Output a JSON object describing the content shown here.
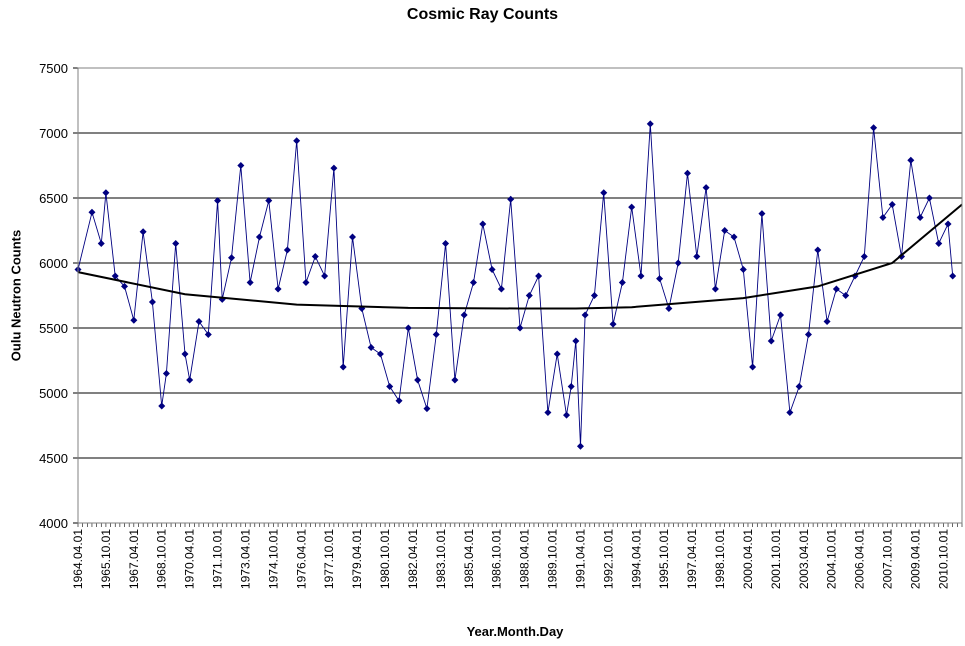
{
  "chart_data": {
    "type": "line",
    "title": "Cosmic Ray Counts",
    "xlabel": "Year.Month.Day",
    "ylabel": "Oulu Neutron Counts",
    "ylim": [
      4000,
      7500
    ],
    "y_ticks": [
      4000,
      4500,
      5000,
      5500,
      6000,
      6500,
      7000,
      7500
    ],
    "grid": "horizontal",
    "x_tick_labels": [
      "1964.04.01",
      "1965.10.01",
      "1967.04.01",
      "1968.10.01",
      "1970.04.01",
      "1971.10.01",
      "1973.04.01",
      "1974.10.01",
      "1976.04.01",
      "1977.10.01",
      "1979.04.01",
      "1980.10.01",
      "1982.04.01",
      "1983.10.01",
      "1985.04.01",
      "1986.10.01",
      "1988.04.01",
      "1989.10.01",
      "1991.04.01",
      "1992.10.01",
      "1994.04.01",
      "1995.10.01",
      "1997.04.01",
      "1998.10.01",
      "2000.04.01",
      "2001.10.01",
      "2003.04.01",
      "2004.10.01",
      "2006.04.01",
      "2007.10.01",
      "2009.04.01",
      "2010.10.01"
    ],
    "series": [
      {
        "marker": "diamond",
        "color": "#000080",
        "x": [
          1964.25,
          1965.0,
          1965.5,
          1965.75,
          1966.25,
          1966.75,
          1967.25,
          1967.75,
          1968.25,
          1968.75,
          1969.0,
          1969.5,
          1970.0,
          1970.25,
          1970.75,
          1971.25,
          1971.75,
          1972.0,
          1972.5,
          1973.0,
          1973.5,
          1974.0,
          1974.5,
          1975.0,
          1975.5,
          1976.0,
          1976.5,
          1977.0,
          1977.5,
          1978.0,
          1978.5,
          1979.0,
          1979.5,
          1980.0,
          1980.5,
          1981.0,
          1981.5,
          1982.0,
          1982.5,
          1983.0,
          1983.5,
          1984.0,
          1984.5,
          1985.0,
          1985.5,
          1986.0,
          1986.5,
          1987.0,
          1987.5,
          1988.0,
          1988.5,
          1989.0,
          1989.5,
          1990.0,
          1990.5,
          1990.75,
          1991.0,
          1991.25,
          1991.5,
          1992.0,
          1992.5,
          1993.0,
          1993.5,
          1994.0,
          1994.5,
          1995.0,
          1995.5,
          1996.0,
          1996.5,
          1997.0,
          1997.5,
          1998.0,
          1998.5,
          1999.0,
          1999.5,
          2000.0,
          2000.5,
          2001.0,
          2001.5,
          2002.0,
          2002.5,
          2003.0,
          2003.5,
          2004.0,
          2004.5,
          2005.0,
          2005.5,
          2006.0,
          2006.5,
          2007.0,
          2007.5,
          2008.0,
          2008.5,
          2009.0,
          2009.5,
          2010.0,
          2010.5,
          2011.0,
          2011.25
        ],
        "y": [
          5950,
          6390,
          6150,
          6540,
          5900,
          5820,
          5560,
          6240,
          5700,
          4900,
          5150,
          6150,
          5300,
          5100,
          5550,
          5450,
          6480,
          5720,
          6040,
          6750,
          5850,
          6200,
          6480,
          5800,
          6100,
          6940,
          5850,
          6050,
          5900,
          6730,
          5200,
          6200,
          5650,
          5350,
          5300,
          5050,
          4940,
          5500,
          5100,
          4880,
          5450,
          6150,
          5100,
          5600,
          5850,
          6300,
          5950,
          5800,
          6490,
          5500,
          5750,
          5900,
          4850,
          5300,
          4830,
          5050,
          5400,
          4590,
          5600,
          5750,
          6540,
          5530,
          5850,
          6430,
          5900,
          7070,
          5880,
          5650,
          6000,
          6690,
          6050,
          6580,
          5800,
          6250,
          6200,
          5950,
          5200,
          6380,
          5400,
          5600,
          4850,
          5050,
          5450,
          6100,
          5550,
          5800,
          5750,
          5900,
          6050,
          7040,
          6350,
          6450,
          6050,
          6790,
          6350,
          6500,
          6150,
          6300,
          5900
        ]
      }
    ],
    "trendline": {
      "type": "polynomial",
      "color": "#000000",
      "x": [
        1964.25,
        1970,
        1976,
        1982,
        1988,
        1991,
        1994,
        2000,
        2004,
        2008,
        2011.75
      ],
      "y": [
        5930,
        5760,
        5680,
        5655,
        5650,
        5650,
        5660,
        5730,
        5820,
        6000,
        6450
      ]
    }
  }
}
